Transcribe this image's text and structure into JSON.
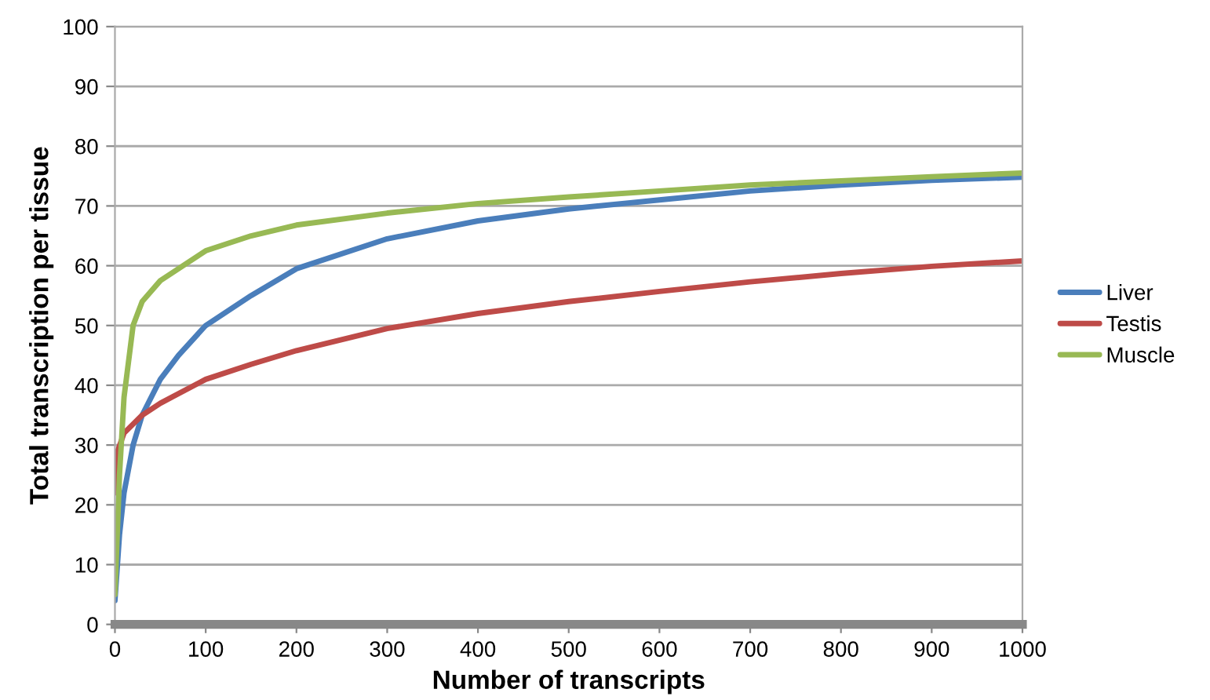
{
  "chart_data": {
    "type": "line",
    "xlabel": "Number of transcripts",
    "ylabel": "Total transcription per tissue",
    "xlim": [
      0,
      1000
    ],
    "ylim": [
      0,
      100
    ],
    "xticks": [
      0,
      100,
      200,
      300,
      400,
      500,
      600,
      700,
      800,
      900,
      1000
    ],
    "yticks": [
      0,
      10,
      20,
      30,
      40,
      50,
      60,
      70,
      80,
      90,
      100
    ],
    "grid": "y",
    "legend": "right",
    "marker": "none",
    "line_style": "solid",
    "series": [
      {
        "name": "Liver",
        "color": "#4a7ebb",
        "x": [
          0,
          5,
          10,
          20,
          30,
          50,
          70,
          100,
          150,
          200,
          300,
          400,
          500,
          600,
          700,
          800,
          900,
          1000
        ],
        "values": [
          4,
          15,
          22,
          30,
          35,
          41,
          45,
          50,
          55,
          59.5,
          64.5,
          67.5,
          69.5,
          71,
          72.5,
          73.5,
          74.3,
          74.8
        ]
      },
      {
        "name": "Testis",
        "color": "#be4b48",
        "x": [
          0,
          3,
          10,
          30,
          50,
          100,
          150,
          200,
          300,
          400,
          500,
          600,
          700,
          800,
          900,
          1000
        ],
        "values": [
          22,
          29,
          32,
          35,
          37,
          41,
          43.5,
          45.8,
          49.5,
          52,
          54,
          55.7,
          57.3,
          58.7,
          59.9,
          60.8
        ]
      },
      {
        "name": "Muscle",
        "color": "#98b954",
        "x": [
          0,
          5,
          10,
          20,
          30,
          50,
          100,
          150,
          200,
          300,
          400,
          500,
          600,
          700,
          800,
          900,
          1000
        ],
        "values": [
          5,
          25,
          38,
          50,
          54,
          57.5,
          62.5,
          65,
          66.8,
          68.8,
          70.4,
          71.5,
          72.5,
          73.5,
          74.2,
          74.9,
          75.5
        ]
      }
    ]
  }
}
